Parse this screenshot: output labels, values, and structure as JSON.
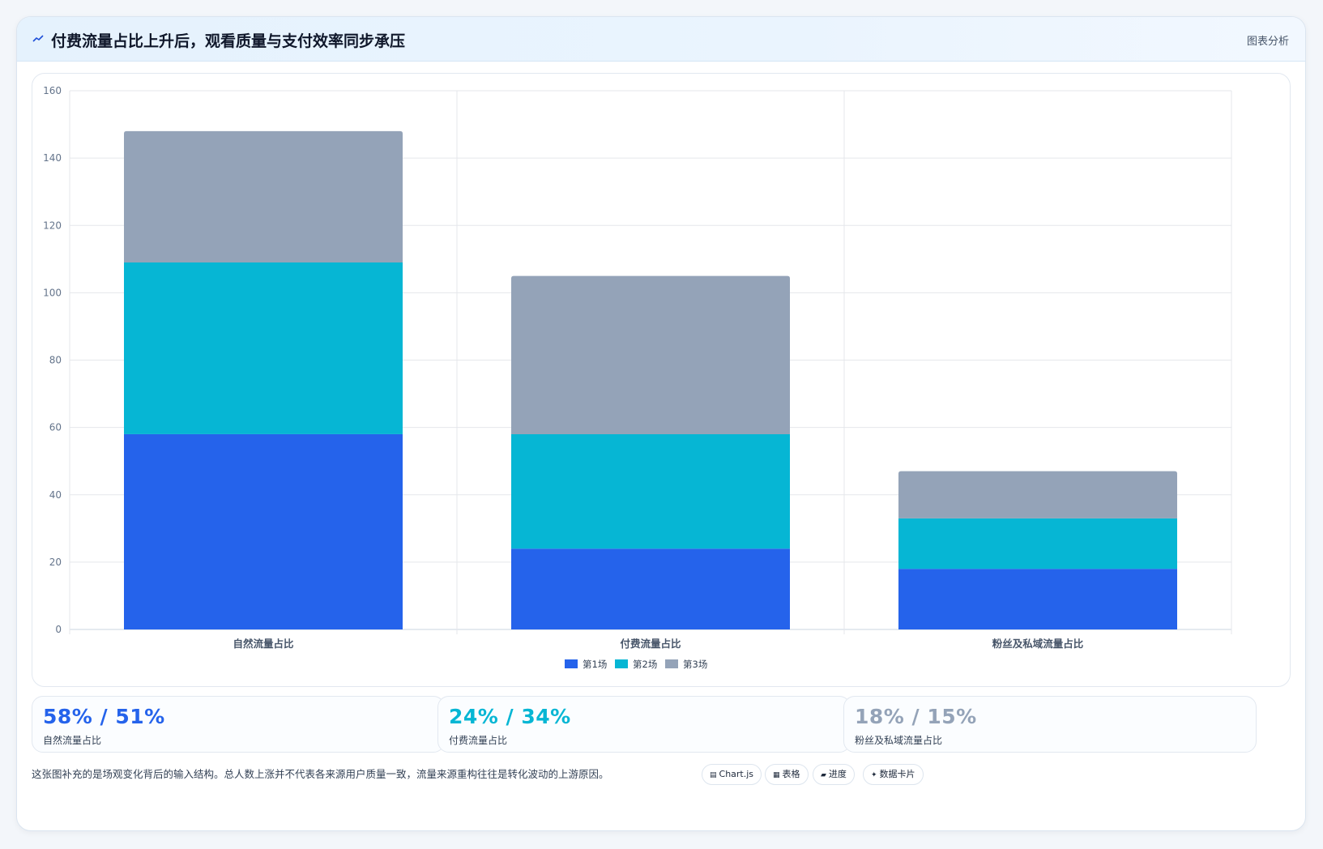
{
  "header": {
    "title": "付费流量占比上升后，观看质量与支付效率同步承压",
    "tag": "图表分析"
  },
  "colors": {
    "series1": "#2563eb",
    "series2": "#06b6d4",
    "series3": "#94a3b8"
  },
  "chart_data": {
    "type": "bar",
    "stacked": true,
    "categories": [
      "自然流量占比",
      "付费流量占比",
      "粉丝及私域流量占比"
    ],
    "series": [
      {
        "name": "第1场",
        "values": [
          58,
          24,
          18
        ]
      },
      {
        "name": "第2场",
        "values": [
          51,
          34,
          15
        ]
      },
      {
        "name": "第3场",
        "values": [
          39,
          47,
          14
        ]
      }
    ],
    "ylim": [
      0,
      160
    ],
    "yticks": [
      0,
      20,
      40,
      60,
      80,
      100,
      120,
      140,
      160
    ],
    "grid": true,
    "legend_position": "bottom"
  },
  "stats": [
    {
      "value": "58% / 51%",
      "label": "自然流量占比",
      "color": "#2563eb"
    },
    {
      "value": "24% / 34%",
      "label": "付费流量占比",
      "color": "#06b6d4"
    },
    {
      "value": "18% / 15%",
      "label": "粉丝及私域流量占比",
      "color": "#94a3b8"
    }
  ],
  "footnote": "这张图补充的是场观变化背后的输入结构。总人数上涨并不代表各来源用户质量一致，流量来源重构往往是转化波动的上游原因。",
  "chips": [
    {
      "icon": "chart-icon",
      "glyph": "▤",
      "label": "Chart.js"
    },
    {
      "icon": "table-icon",
      "glyph": "▦",
      "label": "表格"
    },
    {
      "icon": "progress-icon",
      "glyph": "▰",
      "label": "进度"
    },
    {
      "icon": "sparkle-icon",
      "glyph": "✦",
      "label": "数据卡片"
    }
  ]
}
